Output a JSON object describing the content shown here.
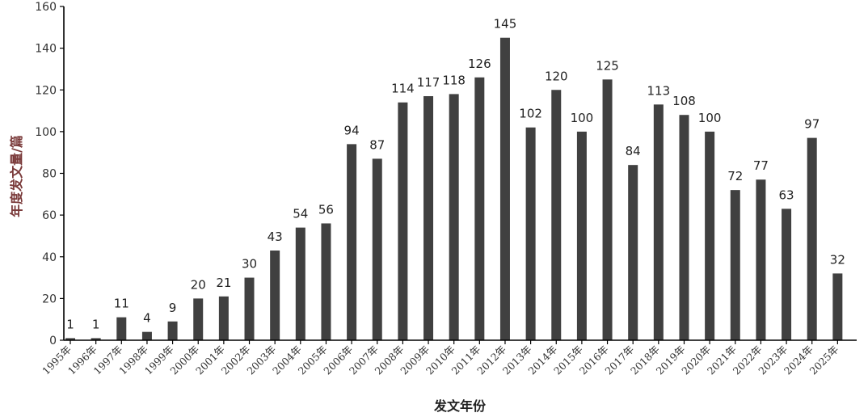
{
  "chart_data": {
    "type": "bar",
    "categories": [
      "1995年",
      "1996年",
      "1997年",
      "1998年",
      "1999年",
      "2000年",
      "2001年",
      "2002年",
      "2003年",
      "2004年",
      "2005年",
      "2006年",
      "2007年",
      "2008年",
      "2009年",
      "2010年",
      "2011年",
      "2012年",
      "2013年",
      "2014年",
      "2015年",
      "2016年",
      "2017年",
      "2018年",
      "2019年",
      "2020年",
      "2021年",
      "2022年",
      "2023年",
      "2024年",
      "2025年"
    ],
    "values": [
      1,
      1,
      11,
      4,
      9,
      20,
      21,
      30,
      43,
      54,
      56,
      94,
      87,
      114,
      117,
      118,
      126,
      145,
      102,
      120,
      100,
      125,
      84,
      113,
      108,
      100,
      72,
      77,
      63,
      97,
      32
    ],
    "xlabel": "发文年份",
    "ylabel": "年度发文量/篇",
    "ylim": [
      0,
      160
    ],
    "yticks": [
      0,
      20,
      40,
      60,
      80,
      100,
      120,
      140,
      160
    ],
    "grid": false,
    "legend": "none",
    "colors": {
      "bar": "#404040",
      "ylabel": "#7a3a3a",
      "xlabel": "#222222",
      "first_label": "#3a5a8a"
    }
  }
}
